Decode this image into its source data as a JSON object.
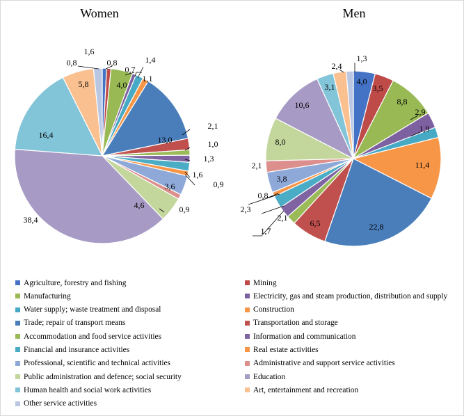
{
  "categories": [
    "Agriculture, forestry and fishing",
    "Mining",
    "Manufacturing",
    "Electricity, gas and steam production, distribution and supply",
    "Water supply; waste treatment and disposal",
    "Construction",
    "Trade; repair of transport means",
    "Transportation and storage",
    "Accommodation and food service activities",
    "Information and communication",
    "Financial and insurance activities",
    "Real estate activities",
    "Professional, scientific and technical activities",
    "Administrative and support service activities",
    "Public administration and defence; social security",
    "Education",
    "Human health and social work activities",
    "Art, entertainment and recreation",
    "Other service activities"
  ],
  "colors": [
    "#4472c4",
    "#be4b48",
    "#98b954",
    "#7d60a0",
    "#46aac5",
    "#f79646",
    "#4a7ebb",
    "#c0504d",
    "#9bbb59",
    "#8064a2",
    "#4bacc6",
    "#f79646",
    "#8ea9d8",
    "#dc8f8c",
    "#c3d69b",
    "#a79bc5",
    "#82c4d8",
    "#fac090",
    "#b9c7e3"
  ],
  "chart_data": [
    {
      "type": "pie",
      "title": "Women",
      "labels": [
        "0,8",
        "0,8",
        "4,0",
        "0,7",
        "1,4",
        "1,1",
        "13,0",
        "2,1",
        "1,0",
        "1,3",
        "1,6",
        "0,9",
        "3,6",
        "0,9",
        "4,6",
        "38,4",
        "16,4",
        "5,8",
        "1,6"
      ],
      "values": [
        0.8,
        0.8,
        4.0,
        0.7,
        1.4,
        1.1,
        13.0,
        2.1,
        1.0,
        1.3,
        1.6,
        0.9,
        3.6,
        0.9,
        4.6,
        38.4,
        16.4,
        5.8,
        1.6
      ]
    },
    {
      "type": "pie",
      "title": "Men",
      "labels": [
        "4,0",
        "3,5",
        "8,8",
        "2,9",
        "1,9",
        "11,4",
        "22,8",
        "6,5",
        "1,7",
        "2,1",
        "2,3",
        "0,8",
        "3,8",
        "2,1",
        "8,0",
        "10,6",
        "3,1",
        "2,4",
        "1,3"
      ],
      "values": [
        4.0,
        3.5,
        8.8,
        2.9,
        1.9,
        11.4,
        22.8,
        6.5,
        1.7,
        2.1,
        2.3,
        0.8,
        3.8,
        2.1,
        8.0,
        10.6,
        3.1,
        2.4,
        1.3
      ]
    }
  ]
}
